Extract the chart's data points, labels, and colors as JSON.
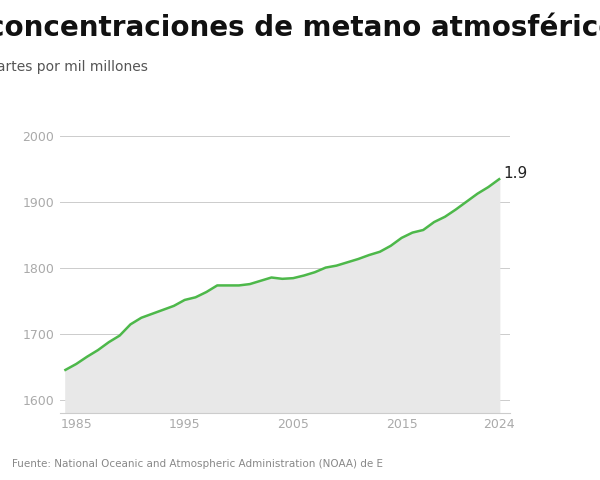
{
  "title": "concentraciones de metano atmosférico",
  "subtitle": "partes por mil millones",
  "source": "Fuente: National Oceanic and Atmospheric Administration (NOAA) de E",
  "annotation": "1.9",
  "line_color": "#4db84a",
  "fill_color": "#e8e8e8",
  "background_color": "#ffffff",
  "yticks": [
    1600,
    1700,
    1800,
    1900,
    2000
  ],
  "xticks": [
    1985,
    1995,
    2005,
    2015,
    2024
  ],
  "ylim": [
    1580,
    2060
  ],
  "xlim": [
    1983.5,
    2025
  ],
  "title_fontsize": 20,
  "subtitle_fontsize": 10,
  "tick_fontsize": 9,
  "source_fontsize": 7.5,
  "data": {
    "years": [
      1984,
      1985,
      1986,
      1987,
      1988,
      1989,
      1990,
      1991,
      1992,
      1993,
      1994,
      1995,
      1996,
      1997,
      1998,
      1999,
      2000,
      2001,
      2002,
      2003,
      2004,
      2005,
      2006,
      2007,
      2008,
      2009,
      2010,
      2011,
      2012,
      2013,
      2014,
      2015,
      2016,
      2017,
      2018,
      2019,
      2020,
      2021,
      2022,
      2023,
      2024
    ],
    "values": [
      1645,
      1654,
      1665,
      1675,
      1687,
      1697,
      1714,
      1724,
      1730,
      1736,
      1742,
      1751,
      1755,
      1763,
      1773,
      1773,
      1773,
      1775,
      1780,
      1785,
      1783,
      1784,
      1788,
      1793,
      1800,
      1803,
      1808,
      1813,
      1819,
      1824,
      1833,
      1845,
      1853,
      1857,
      1869,
      1877,
      1888,
      1900,
      1912,
      1922,
      1934
    ]
  }
}
